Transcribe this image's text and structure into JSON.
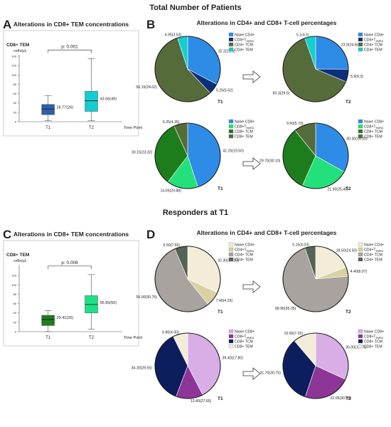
{
  "figure": {
    "section1_title": "Total Number of Patients",
    "section2_title": "Responders at T1",
    "panel_letters": [
      "A",
      "B",
      "C",
      "D"
    ]
  },
  "colors": {
    "cd4_naive_1": "#2e8be6",
    "cd4_temra_1": "#0d2e7a",
    "cd4_tcm_1": "#566b3a",
    "cd4_tem_1": "#13cfcf",
    "cd8_naive_1": "#2e8be6",
    "cd8_temra_1": "#22e07a",
    "cd8_tcm_1": "#1d7d1d",
    "cd8_tem_1": "#566b3a",
    "cd4_naive_2": "#f2ecd8",
    "cd4_temra_2": "#d8d2a3",
    "cd4_tcm_2": "#a8a39e",
    "cd4_tem_2": "#536354",
    "cd8_naive_2": "#d9aee6",
    "cd8_temra_2": "#8e3598",
    "cd8_tcm_2": "#0c1e5e",
    "cd8_tem_2": "#f3ecd9",
    "box_A_T1": "#2f5fa8",
    "box_A_T2": "#13cdd0",
    "box_C_T1": "#1e7d1e",
    "box_C_T2": "#1ee089"
  },
  "chart_data": [
    {
      "panel": "A",
      "type": "box",
      "title": "Alterations in CD8+ TEM concentrations",
      "ylabel": "CD8+ TEM",
      "yunit": "cells/μL",
      "xlabel": "Time Point",
      "ylim": [
        0,
        140
      ],
      "yticks": [
        0,
        20,
        40,
        60,
        80,
        100,
        120,
        140
      ],
      "categories": [
        "T1",
        "T2"
      ],
      "boxes": [
        {
          "name": "T1",
          "min": 2,
          "q1": 15,
          "median": 27,
          "q3": 37,
          "max": 56,
          "label": "26.77(26)"
        },
        {
          "name": "T2",
          "min": 2,
          "q1": 22,
          "median": 45,
          "q3": 65,
          "max": 135,
          "label": "43.66(49)"
        }
      ],
      "pvalue": "p: 0.001"
    },
    {
      "panel": "B",
      "type": "pie",
      "title": "Alterations in CD4+ and CD8+ T-cell percentages",
      "pies": [
        {
          "name": "CD4 T1",
          "time": "T1",
          "legend": [
            "Naive CD4+",
            "CD4+T_EMRA",
            "CD4+ TCM",
            "CD4+ TEM"
          ],
          "slices": [
            {
              "label": "Naive CD4+",
              "value": 32.2,
              "text": "32.2(21.3)",
              "color_key": "cd4_naive_1"
            },
            {
              "label": "CD4+T_EMRA",
              "value": 5.25,
              "text": "5.25(5.62)",
              "color_key": "cd4_temra_1"
            },
            {
              "label": "CD4+ TCM",
              "value": 56.15,
              "text": "56.15(24.02)",
              "color_key": "cd4_tcm_1"
            },
            {
              "label": "CD4+ TEM",
              "value": 4.95,
              "text": "4.95(3.53)",
              "color_key": "cd4_tem_1"
            }
          ]
        },
        {
          "name": "CD4 T2",
          "time": "T2",
          "legend": [
            "Naive CD4+",
            "CD4+T_EMRA",
            "CD4+ TCM",
            "CD4+ TEM"
          ],
          "slices": [
            {
              "label": "Naive CD4+",
              "value": 23.9,
              "text": "23.9(24.8)",
              "color_key": "cd4_naive_1"
            },
            {
              "label": "CD4+T_EMRA",
              "value": 5.9,
              "text": "5.9(9.3)",
              "color_key": "cd4_temra_1"
            },
            {
              "label": "CD4+ TCM",
              "value": 60.3,
              "text": "60.3(29.5)",
              "color_key": "cd4_tcm_1"
            },
            {
              "label": "CD4+ TEM",
              "value": 5.1,
              "text": "5.1(4.5)",
              "color_key": "cd4_tem_1"
            }
          ]
        },
        {
          "name": "CD8 T1",
          "time": "T1",
          "legend": [
            "Naive CD8+",
            "CD8+T_EMRA",
            "CD8+ TCM",
            "CD8+ TEM"
          ],
          "slices": [
            {
              "label": "Naive CD8+",
              "value": 41.25,
              "text": "41.25(19.50)",
              "color_key": "cd8_naive_1"
            },
            {
              "label": "CD8+T_EMRA",
              "value": 14.05,
              "text": "14.05(29.88)",
              "color_key": "cd8_temra_1"
            },
            {
              "label": "CD8+ TCM",
              "value": 30.15,
              "text": "30.15(23.32)",
              "color_key": "cd8_tcm_1"
            },
            {
              "label": "CD8+ TEM",
              "value": 6.25,
              "text": "6.25(4.35)",
              "color_key": "cd8_tem_1"
            }
          ]
        },
        {
          "name": "CD8 T2",
          "time": "T2",
          "legend": [
            "Naive CD8+",
            "CD8+T_EMRA",
            "CD8+ TCM",
            "CD8+ TEM"
          ],
          "slices": [
            {
              "label": "Naive CD8+",
              "value": 30.3,
              "text": "30.30(19.00)",
              "color_key": "cd8_naive_1"
            },
            {
              "label": "CD8+T_EMRA",
              "value": 21.5,
              "text": "21.50(25.40)",
              "color_key": "cd8_temra_1"
            },
            {
              "label": "CD8+ TCM",
              "value": 29.7,
              "text": "29.70(30.10)",
              "color_key": "cd8_tcm_1"
            },
            {
              "label": "CD8+ TEM",
              "value": 9.9,
              "text": "9.90(5.70)",
              "color_key": "cd8_tem_1"
            }
          ]
        }
      ]
    },
    {
      "panel": "C",
      "type": "box",
      "title": "Alterations in CD8+ TEM concentrations",
      "ylabel": "CD8+ TEM",
      "yunit": "cells/μL",
      "xlabel": "Time Point",
      "ylim": [
        0,
        140
      ],
      "yticks": [
        0,
        20,
        40,
        60,
        80,
        100,
        120
      ],
      "categories": [
        "T1",
        "T2"
      ],
      "boxes": [
        {
          "name": "T1",
          "min": 0,
          "q1": 13,
          "median": 26,
          "q3": 35,
          "max": 45,
          "label": "29.41(26)"
        },
        {
          "name": "T2",
          "min": 5,
          "q1": 40,
          "median": 58,
          "q3": 77,
          "max": 122,
          "label": "56.95(50)"
        }
      ],
      "pvalue": "p: 0.008"
    },
    {
      "panel": "D",
      "type": "pie",
      "title": "Alterations in CD4+ and CD8+ T-cell percentages",
      "pies": [
        {
          "name": "CD4 T1",
          "time": "T1",
          "legend": [
            "Naive CD4+",
            "CD4+T_EMRA",
            "CD4+ TCM",
            "CD4+ TEM"
          ],
          "slices": [
            {
              "label": "Naive CD4+",
              "value": 32.3,
              "text": "32.30(26.20)",
              "color_key": "cd4_naive_2"
            },
            {
              "label": "CD4+T_EMRA",
              "value": 7.4,
              "text": "7.40(4.25)",
              "color_key": "cd4_temra_2"
            },
            {
              "label": "CD4+ TCM",
              "value": 55.0,
              "text": "55.00(30.75)",
              "color_key": "cd4_tcm_2"
            },
            {
              "label": "CD4+ TEM",
              "value": 6.5,
              "text": "6.50(7.55)",
              "color_key": "cd4_tem_2"
            }
          ]
        },
        {
          "name": "CD4 T2",
          "time": "T2",
          "legend": [
            "Naive CD4+",
            "CD4+T_EMRA",
            "CD4+ TCM",
            "CD4+ TEM"
          ],
          "slices": [
            {
              "label": "Naive CD4+",
              "value": 18.5,
              "text": "18.50(24.30)",
              "color_key": "cd4_naive_2"
            },
            {
              "label": "CD4+T_EMRA",
              "value": 4.4,
              "text": "4.40(8.07)",
              "color_key": "cd4_temra_2"
            },
            {
              "label": "CD4+ TCM",
              "value": 68.9,
              "text": "68.90(35.35)",
              "color_key": "cd4_tcm_2"
            },
            {
              "label": "CD4+ TEM",
              "value": 5.15,
              "text": "5.15(4.03)",
              "color_key": "cd4_tem_2"
            }
          ]
        },
        {
          "name": "CD8 T1",
          "time": "T1",
          "legend": [
            "Naive CD8+",
            "CD8+T_EMRA",
            "CD8+ TCM",
            "CD8+ TEM"
          ],
          "slices": [
            {
              "label": "Naive CD8+",
              "value": 39.4,
              "text": "39.40(17.80)",
              "color_key": "cd8_naive_2"
            },
            {
              "label": "CD8+T_EMRA",
              "value": 12.4,
              "text": "12.40(27.65)",
              "color_key": "cd8_temra_2"
            },
            {
              "label": "CD8+ TCM",
              "value": 34.3,
              "text": "34.30(29.55)",
              "color_key": "cd8_tcm_2"
            },
            {
              "label": "CD8+ TEM",
              "value": 6.8,
              "text": "6.80(4.00)",
              "color_key": "cd8_tem_2"
            }
          ]
        },
        {
          "name": "CD8 T2",
          "time": "T2",
          "legend": [
            "Naive CD8+",
            "CD8+T_EMRA",
            "CD8+ TCM",
            "CD8+ TEM"
          ],
          "slices": [
            {
              "label": "Naive CD8+",
              "value": 30.0,
              "text": "30.00(15.75)",
              "color_key": "cd8_naive_2"
            },
            {
              "label": "CD8+T_EMRA",
              "value": 22.05,
              "text": "22.05(30.70)",
              "color_key": "cd8_temra_2"
            },
            {
              "label": "CD8+ TCM",
              "value": 31.7,
              "text": "31.70(30.75)",
              "color_key": "cd8_tcm_2"
            },
            {
              "label": "CD8+ TEM",
              "value": 10.6,
              "text": "10.60(7.25)",
              "color_key": "cd8_tem_2"
            }
          ]
        }
      ]
    }
  ]
}
